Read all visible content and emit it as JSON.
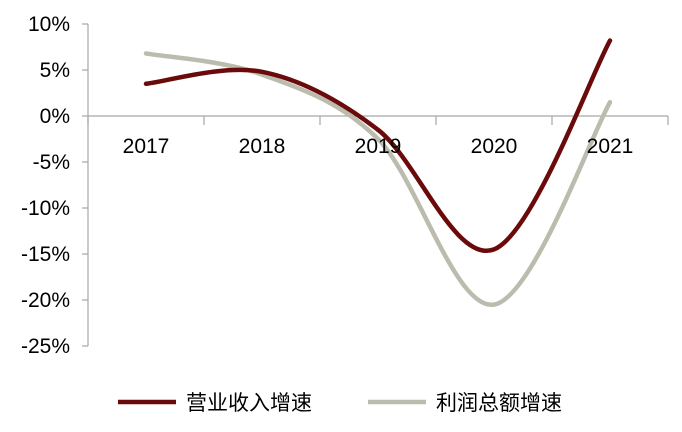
{
  "chart_data": {
    "type": "line",
    "smooth": true,
    "title": "",
    "xlabel": "",
    "ylabel": "",
    "categories": [
      "2017",
      "2018",
      "2019",
      "2020",
      "2021"
    ],
    "ylim": [
      -25,
      10
    ],
    "yticks": [
      10,
      5,
      0,
      -5,
      -10,
      -15,
      -20,
      -25
    ],
    "ytick_labels": [
      "10%",
      "5%",
      "0%",
      "-5%",
      "-10%",
      "-15%",
      "-20%",
      "-25%"
    ],
    "grid": false,
    "legend_position": "bottom",
    "series": [
      {
        "name": "营业收入增速",
        "color": "#6b0a0a",
        "values": [
          3.5,
          4.8,
          -1.5,
          -14.5,
          8.2
        ]
      },
      {
        "name": "利润总额增速",
        "color": "#bcbcae",
        "values": [
          6.8,
          4.5,
          -2.5,
          -20.5,
          1.5
        ]
      }
    ]
  }
}
